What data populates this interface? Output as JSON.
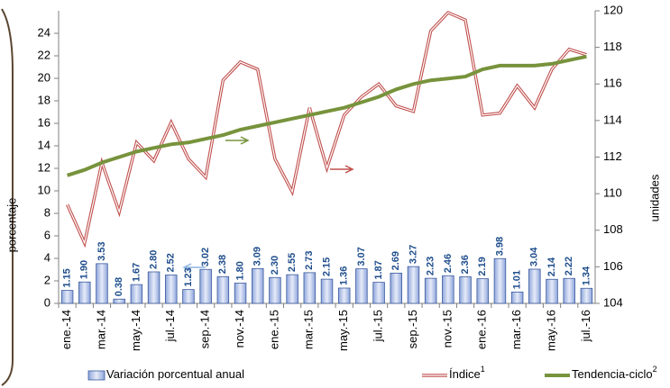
{
  "chart_data": {
    "type": "bar",
    "categories": [
      "ene.-14",
      null,
      "mar.-14",
      null,
      "may.-14",
      null,
      "jul.-14",
      null,
      "sep.-14",
      null,
      "nov.-14",
      null,
      "ene.-15",
      null,
      "mar.-15",
      null,
      "may.-15",
      null,
      "jul.-15",
      null,
      "sep.-15",
      null,
      "nov.-15",
      null,
      "ene.-16",
      null,
      "mar.-16",
      null,
      "may.-16",
      null,
      "jul.-16"
    ],
    "series": [
      {
        "name": "Variación porcentual anual",
        "type": "bar",
        "color": "#b9c7ea",
        "values": [
          1.15,
          1.9,
          3.53,
          0.38,
          1.67,
          2.8,
          2.52,
          1.23,
          3.02,
          2.38,
          1.8,
          3.09,
          2.3,
          2.55,
          2.73,
          2.15,
          1.36,
          3.07,
          1.87,
          2.69,
          3.27,
          2.23,
          2.46,
          2.36,
          2.19,
          3.98,
          1.01,
          3.04,
          2.14,
          2.22,
          1.34
        ],
        "value_labels": [
          "1.15",
          "1.90",
          "3.53",
          "0.38",
          "1.67",
          "2.80",
          "2.52",
          "1.23",
          "3.02",
          "2.38",
          "1.80",
          "3.09",
          "2.30",
          "2.55",
          "2.73",
          "2.15",
          "1.36",
          "3.07",
          "1.87",
          "2.69",
          "3.27",
          "2.23",
          "2.46",
          "2.36",
          "2.19",
          "3.98",
          "1.01",
          "3.04",
          "2.14",
          "2.22",
          "1.34"
        ]
      },
      {
        "name": "Índice",
        "superscript": "1",
        "type": "line",
        "axis": "y2",
        "color": "#c0504d",
        "values": [
          109.4,
          107.3,
          111.7,
          109.0,
          112.8,
          111.8,
          113.9,
          111.9,
          110.9,
          116.2,
          117.2,
          116.8,
          111.9,
          110.1,
          114.7,
          111.4,
          114.3,
          115.3,
          116.0,
          114.8,
          114.5,
          118.9,
          119.9,
          119.5,
          114.3,
          114.4,
          115.9,
          114.7,
          116.8,
          117.9,
          117.6
        ]
      },
      {
        "name": "Tendencia-ciclo",
        "superscript": "2",
        "type": "line",
        "axis": "y2",
        "color": "#77933c",
        "values": [
          111.0,
          111.3,
          111.7,
          112.0,
          112.3,
          112.5,
          112.7,
          112.8,
          113.0,
          113.2,
          113.5,
          113.7,
          113.9,
          114.1,
          114.3,
          114.5,
          114.7,
          115.0,
          115.3,
          115.7,
          116.0,
          116.2,
          116.3,
          116.4,
          116.8,
          117.0,
          117.0,
          117.0,
          117.1,
          117.3,
          117.5
        ]
      }
    ],
    "ylabel": "porcentaje",
    "y2label": "unidades",
    "ylim": [
      0,
      26
    ],
    "yticks": [
      0,
      2,
      4,
      6,
      8,
      10,
      12,
      14,
      16,
      18,
      20,
      22,
      24
    ],
    "y2lim": [
      104,
      120
    ],
    "y2ticks": [
      104,
      106,
      108,
      110,
      112,
      114,
      116,
      118,
      120
    ],
    "grid": false
  }
}
